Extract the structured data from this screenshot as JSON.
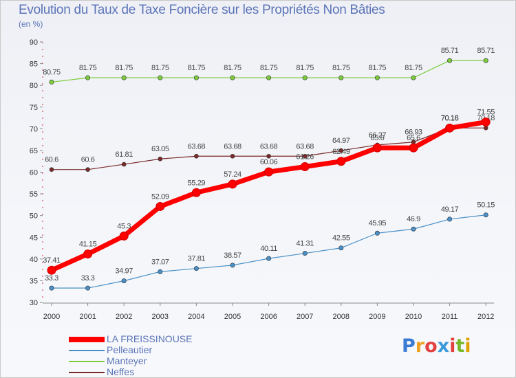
{
  "title": "Evolution du Taux de Taxe Foncière sur les Propriétés Non Bâties",
  "unit_label": "(en %)",
  "logo_text": "Proxiti",
  "chart_data": {
    "type": "line",
    "title": "Evolution du Taux de Taxe Foncière sur les Propriétés Non Bâties",
    "ylabel": "(en %)",
    "xlabel": "",
    "x": [
      "2000",
      "2001",
      "2002",
      "2003",
      "2004",
      "2005",
      "2006",
      "2007",
      "2008",
      "2009",
      "2010",
      "2011",
      "2012"
    ],
    "yticks": [
      30,
      35,
      40,
      45,
      50,
      55,
      60,
      65,
      70,
      75,
      80,
      85,
      90
    ],
    "ylim": [
      30,
      90
    ],
    "grid": false,
    "legend_position": "bottom-left",
    "series": [
      {
        "name": "LA FREISSINOUSE",
        "color": "#ff0000",
        "values": [
          37.41,
          41.15,
          45.3,
          52.09,
          55.29,
          57.24,
          60.06,
          61.26,
          62.49,
          65.6,
          65.6,
          70.16,
          71.55
        ],
        "labels": [
          "37.41",
          "41.15",
          "45.3",
          "52.09",
          "55.29",
          "57.24",
          "60.06",
          "61.26",
          "62.49",
          "65.6",
          "65.6",
          "70.16",
          "71.55"
        ]
      },
      {
        "name": "Pelleautier",
        "color": "#4a90c8",
        "values": [
          33.3,
          33.3,
          34.97,
          37.07,
          37.81,
          38.57,
          40.11,
          41.31,
          42.55,
          45.95,
          46.9,
          49.17,
          50.15
        ],
        "labels": [
          "33.3",
          "33.3",
          "34.97",
          "37.07",
          "37.81",
          "38.57",
          "40.11",
          "41.31",
          "42.55",
          "45.95",
          "46.9",
          "49.17",
          "50.15"
        ]
      },
      {
        "name": "Manteyer",
        "color": "#7ccc3c",
        "values": [
          80.75,
          81.75,
          81.75,
          81.75,
          81.75,
          81.75,
          81.75,
          81.75,
          81.75,
          81.75,
          81.75,
          85.71,
          85.71
        ],
        "labels": [
          "80.75",
          "81.75",
          "81.75",
          "81.75",
          "81.75",
          "81.75",
          "81.75",
          "81.75",
          "81.75",
          "81.75",
          "81.75",
          "85.71",
          "85.71"
        ]
      },
      {
        "name": "Neffes",
        "color": "#7a2a2a",
        "values": [
          60.6,
          60.6,
          61.81,
          63.05,
          63.68,
          63.68,
          63.68,
          63.68,
          64.97,
          66.27,
          66.93,
          70.18,
          70.18
        ],
        "labels": [
          "60.6",
          "60.6",
          "61.81",
          "63.05",
          "63.68",
          "63.68",
          "63.68",
          "63.68",
          "64.97",
          "66.27",
          "66.93",
          "70.18",
          "70.18"
        ]
      }
    ]
  }
}
